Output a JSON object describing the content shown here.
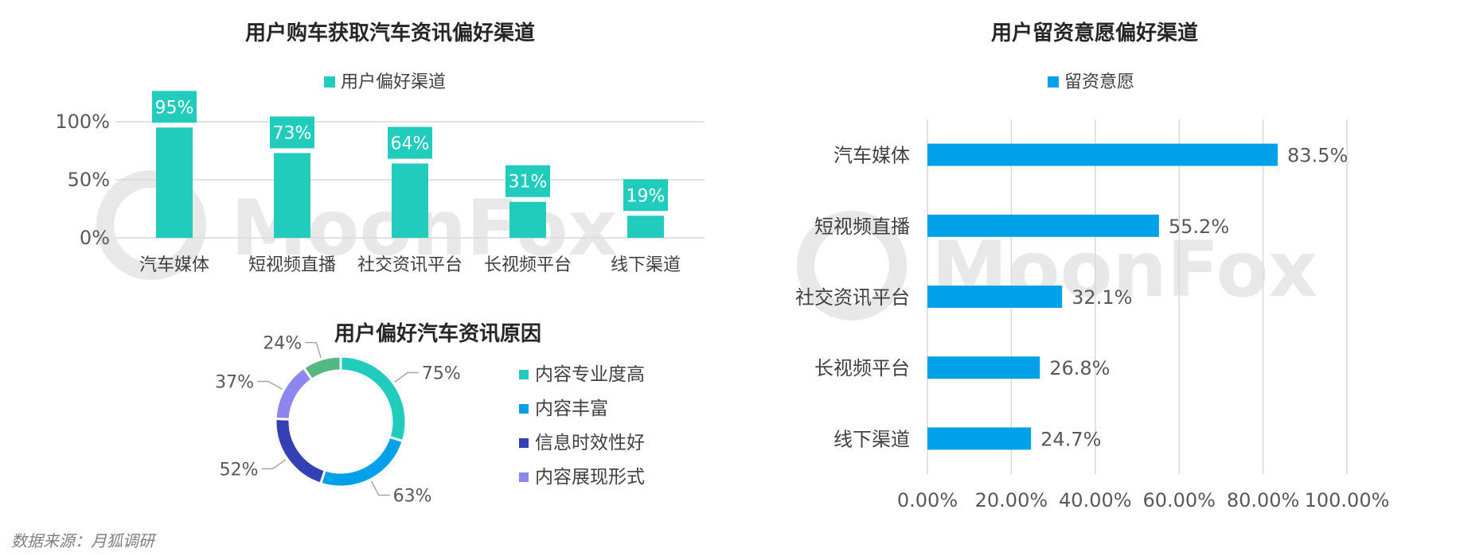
{
  "source_note": "数据来源：月狐调研",
  "watermark": "MoonFox",
  "colors": {
    "teal": "#21ccbd",
    "blue": "#00a1e9",
    "navy": "#3240b4",
    "lavender": "#8d86ee",
    "green": "#55b883",
    "grid": "#d9d9d9",
    "watermark": "#e8e8e8"
  },
  "chart_data": [
    {
      "type": "bar",
      "title": "用户购车获取汽车资讯偏好渠道",
      "categories": [
        "汽车媒体",
        "短视频直播",
        "社交资讯平台",
        "长视频平台",
        "线下渠道"
      ],
      "series": [
        {
          "name": "用户偏好渠道",
          "values": [
            95,
            73,
            64,
            31,
            19
          ],
          "color": "#21ccbd"
        }
      ],
      "value_labels": [
        "95%",
        "73%",
        "64%",
        "31%",
        "19%"
      ],
      "ylim": [
        0,
        100
      ],
      "yticks": [
        0,
        50,
        100
      ],
      "ytick_labels": [
        "0%",
        "50%",
        "100%"
      ],
      "grid": true,
      "legend": "top"
    },
    {
      "type": "pie",
      "variant": "donut",
      "title": "用户偏好汽车资讯原因",
      "slices": [
        {
          "name": "内容专业度高",
          "value": 75,
          "label": "75%",
          "color": "#21ccbd"
        },
        {
          "name": "内容丰富",
          "value": 63,
          "label": "63%",
          "color": "#00a1e9"
        },
        {
          "name": "信息时效性好",
          "value": 52,
          "label": "52%",
          "color": "#3240b4"
        },
        {
          "name": "内容展现形式",
          "value": 37,
          "label": "37%",
          "color": "#8d86ee"
        },
        {
          "name": "",
          "value": 24,
          "label": "24%",
          "color": "#55b883"
        }
      ],
      "legend": "right"
    },
    {
      "type": "bar",
      "orientation": "horizontal",
      "title": "用户留资意愿偏好渠道",
      "categories": [
        "汽车媒体",
        "短视频直播",
        "社交资讯平台",
        "长视频平台",
        "线下渠道"
      ],
      "series": [
        {
          "name": "留资意愿",
          "values": [
            83.5,
            55.2,
            32.1,
            26.8,
            24.7
          ],
          "color": "#00a1e9"
        }
      ],
      "value_labels": [
        "83.5%",
        "55.2%",
        "32.1%",
        "26.8%",
        "24.7%"
      ],
      "xlim": [
        0,
        100
      ],
      "xticks": [
        0,
        20,
        40,
        60,
        80,
        100
      ],
      "xtick_labels": [
        "0.00%",
        "20.00%",
        "40.00%",
        "60.00%",
        "80.00%",
        "100.00%"
      ],
      "grid": true,
      "legend": "top"
    }
  ]
}
